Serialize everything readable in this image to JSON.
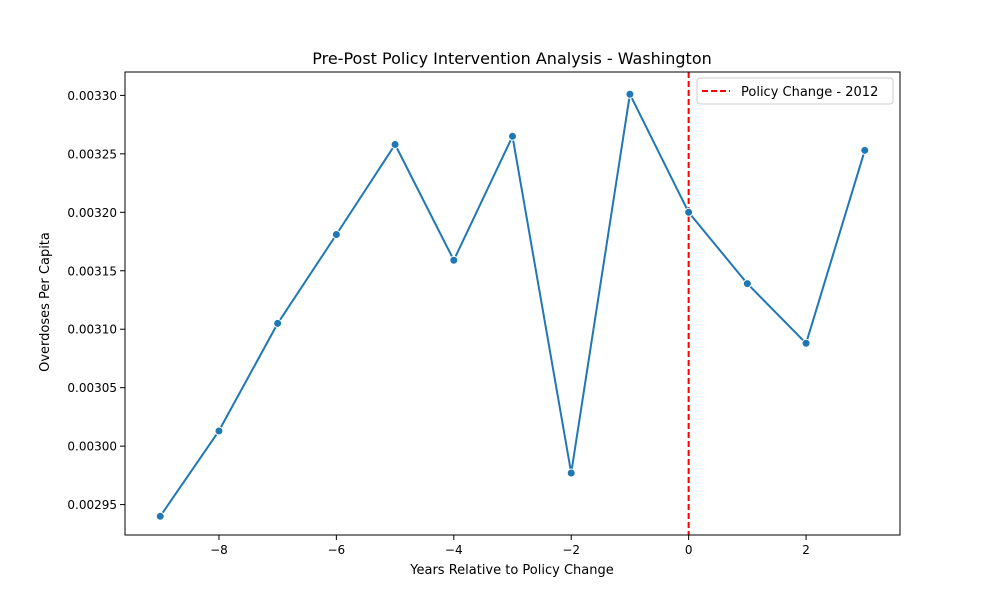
{
  "chart_data": {
    "type": "line",
    "title": "Pre-Post Policy Intervention Analysis - Washington",
    "xlabel": "Years Relative to Policy Change",
    "ylabel": "Overdoses Per Capita",
    "xlim": [
      -9.6,
      3.6
    ],
    "ylim": [
      0.002924,
      0.00332
    ],
    "xticks": [
      -8,
      -6,
      -4,
      -2,
      0,
      2
    ],
    "xtick_labels": [
      "−8",
      "−6",
      "−4",
      "−2",
      "0",
      "2"
    ],
    "yticks": [
      0.00295,
      0.003,
      0.00305,
      0.0031,
      0.00315,
      0.0032,
      0.00325,
      0.0033
    ],
    "ytick_labels": [
      "0.00295",
      "0.00300",
      "0.00305",
      "0.00310",
      "0.00315",
      "0.00320",
      "0.00325",
      "0.00330"
    ],
    "grid": false,
    "series": [
      {
        "color": "#1f77b4",
        "marker": "circle",
        "x": [
          -9,
          -8,
          -7,
          -6,
          -5,
          -4,
          -3,
          -2,
          -1,
          0,
          1,
          2,
          3
        ],
        "y": [
          0.00294,
          0.003013,
          0.003105,
          0.003181,
          0.003258,
          0.003159,
          0.003265,
          0.002977,
          0.003301,
          0.0032,
          0.003139,
          0.003088,
          0.003253
        ]
      }
    ],
    "reference_lines": [
      {
        "orientation": "vertical",
        "x": 0,
        "color": "#ff0000",
        "style": "dashed",
        "label": "Policy Change - 2012"
      }
    ],
    "legend": {
      "placement": "top-right",
      "entries": [
        "Policy Change - 2012"
      ]
    }
  }
}
